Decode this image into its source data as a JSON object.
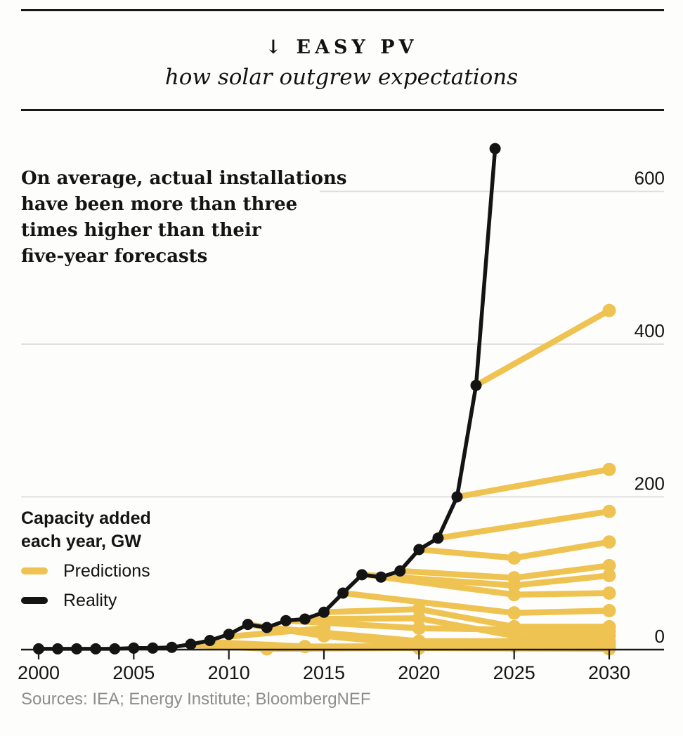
{
  "page": {
    "title": "↓ EASY PV",
    "subtitle": "how solar outgrew expectations",
    "annotation": {
      "lines": [
        "On average, actual installations",
        "have been more than three",
        "times higher than their",
        "five-year forecasts"
      ]
    },
    "legend": {
      "title_line1": "Capacity added",
      "title_line2": "each year, GW",
      "items": [
        {
          "label": "Predictions",
          "key": "prediction"
        },
        {
          "label": "Reality",
          "key": "reality"
        }
      ]
    },
    "sources": "Sources: IEA; Energy Institute; BloombergNEF"
  },
  "chart_data": {
    "type": "line",
    "title": "Easy PV — how solar outgrew expectations",
    "ylabel": "Capacity added each year, GW",
    "xlabel": "",
    "x_domain": [
      2000,
      2030
    ],
    "y_domain": [
      0,
      650
    ],
    "x_ticks": [
      2000,
      2005,
      2010,
      2015,
      2020,
      2025,
      2030
    ],
    "y_ticks": [
      0,
      200,
      400,
      600
    ],
    "grid": "horizontal",
    "legend_position": "left",
    "colors": {
      "prediction": "#EFC351",
      "reality": "#141414",
      "grid": "#dcdcdc",
      "axis": "#1a1a1a",
      "tick_label": "#141414"
    },
    "reality_series": {
      "name": "Reality",
      "points": [
        [
          2000,
          1
        ],
        [
          2001,
          1
        ],
        [
          2002,
          1
        ],
        [
          2003,
          1
        ],
        [
          2004,
          1
        ],
        [
          2005,
          2
        ],
        [
          2006,
          2
        ],
        [
          2007,
          3
        ],
        [
          2008,
          7
        ],
        [
          2009,
          12
        ],
        [
          2010,
          20
        ],
        [
          2011,
          33
        ],
        [
          2012,
          29
        ],
        [
          2013,
          38
        ],
        [
          2014,
          40
        ],
        [
          2015,
          49
        ],
        [
          2016,
          74
        ],
        [
          2017,
          98
        ],
        [
          2018,
          95
        ],
        [
          2019,
          103
        ],
        [
          2020,
          131
        ],
        [
          2021,
          146
        ],
        [
          2022,
          200
        ],
        [
          2023,
          346
        ],
        [
          2024,
          656
        ]
      ]
    },
    "prediction_series": [
      {
        "vintage": 2023,
        "points": [
          [
            2023,
            346
          ],
          [
            2030,
            444
          ]
        ]
      },
      {
        "vintage": 2022,
        "points": [
          [
            2022,
            200
          ],
          [
            2030,
            236
          ]
        ]
      },
      {
        "vintage": 2021,
        "points": [
          [
            2021,
            146
          ],
          [
            2030,
            181
          ]
        ]
      },
      {
        "vintage": 2020,
        "points": [
          [
            2020,
            131
          ],
          [
            2025,
            120
          ],
          [
            2030,
            141
          ]
        ]
      },
      {
        "vintage": 2019,
        "points": [
          [
            2019,
            103
          ],
          [
            2025,
            94
          ],
          [
            2030,
            110
          ]
        ]
      },
      {
        "vintage": 2017,
        "points": [
          [
            2017,
            98
          ],
          [
            2025,
            84
          ],
          [
            2030,
            97
          ]
        ]
      },
      {
        "vintage": 2018,
        "points": [
          [
            2018,
            95
          ],
          [
            2025,
            72
          ],
          [
            2030,
            74
          ]
        ]
      },
      {
        "vintage": 2016,
        "points": [
          [
            2016,
            74
          ],
          [
            2025,
            48
          ],
          [
            2030,
            51
          ]
        ]
      },
      {
        "vintage": 2015,
        "points": [
          [
            2015,
            49
          ],
          [
            2020,
            53
          ],
          [
            2025,
            30
          ],
          [
            2030,
            30
          ]
        ]
      },
      {
        "vintage": 2014,
        "points": [
          [
            2014,
            40
          ],
          [
            2020,
            41
          ],
          [
            2025,
            18
          ],
          [
            2030,
            18
          ]
        ]
      },
      {
        "vintage": 2013,
        "points": [
          [
            2013,
            38
          ],
          [
            2020,
            28
          ],
          [
            2030,
            24
          ]
        ]
      },
      {
        "vintage": 2012,
        "points": [
          [
            2012,
            29
          ],
          [
            2020,
            11
          ],
          [
            2030,
            11
          ]
        ]
      },
      {
        "vintage": 2011,
        "points": [
          [
            2011,
            33
          ],
          [
            2015,
            18
          ],
          [
            2020,
            6
          ],
          [
            2030,
            6
          ]
        ]
      },
      {
        "vintage": 2010,
        "points": [
          [
            2010,
            17
          ],
          [
            2015,
            28
          ]
        ]
      },
      {
        "vintage": 2009,
        "points": [
          [
            2009,
            10
          ],
          [
            2014,
            4
          ],
          [
            2025,
            5
          ],
          [
            2030,
            3
          ]
        ]
      },
      {
        "vintage": 2008,
        "points": [
          [
            2008,
            6
          ],
          [
            2012,
            1
          ],
          [
            2020,
            2
          ],
          [
            2030,
            1
          ]
        ]
      }
    ]
  }
}
